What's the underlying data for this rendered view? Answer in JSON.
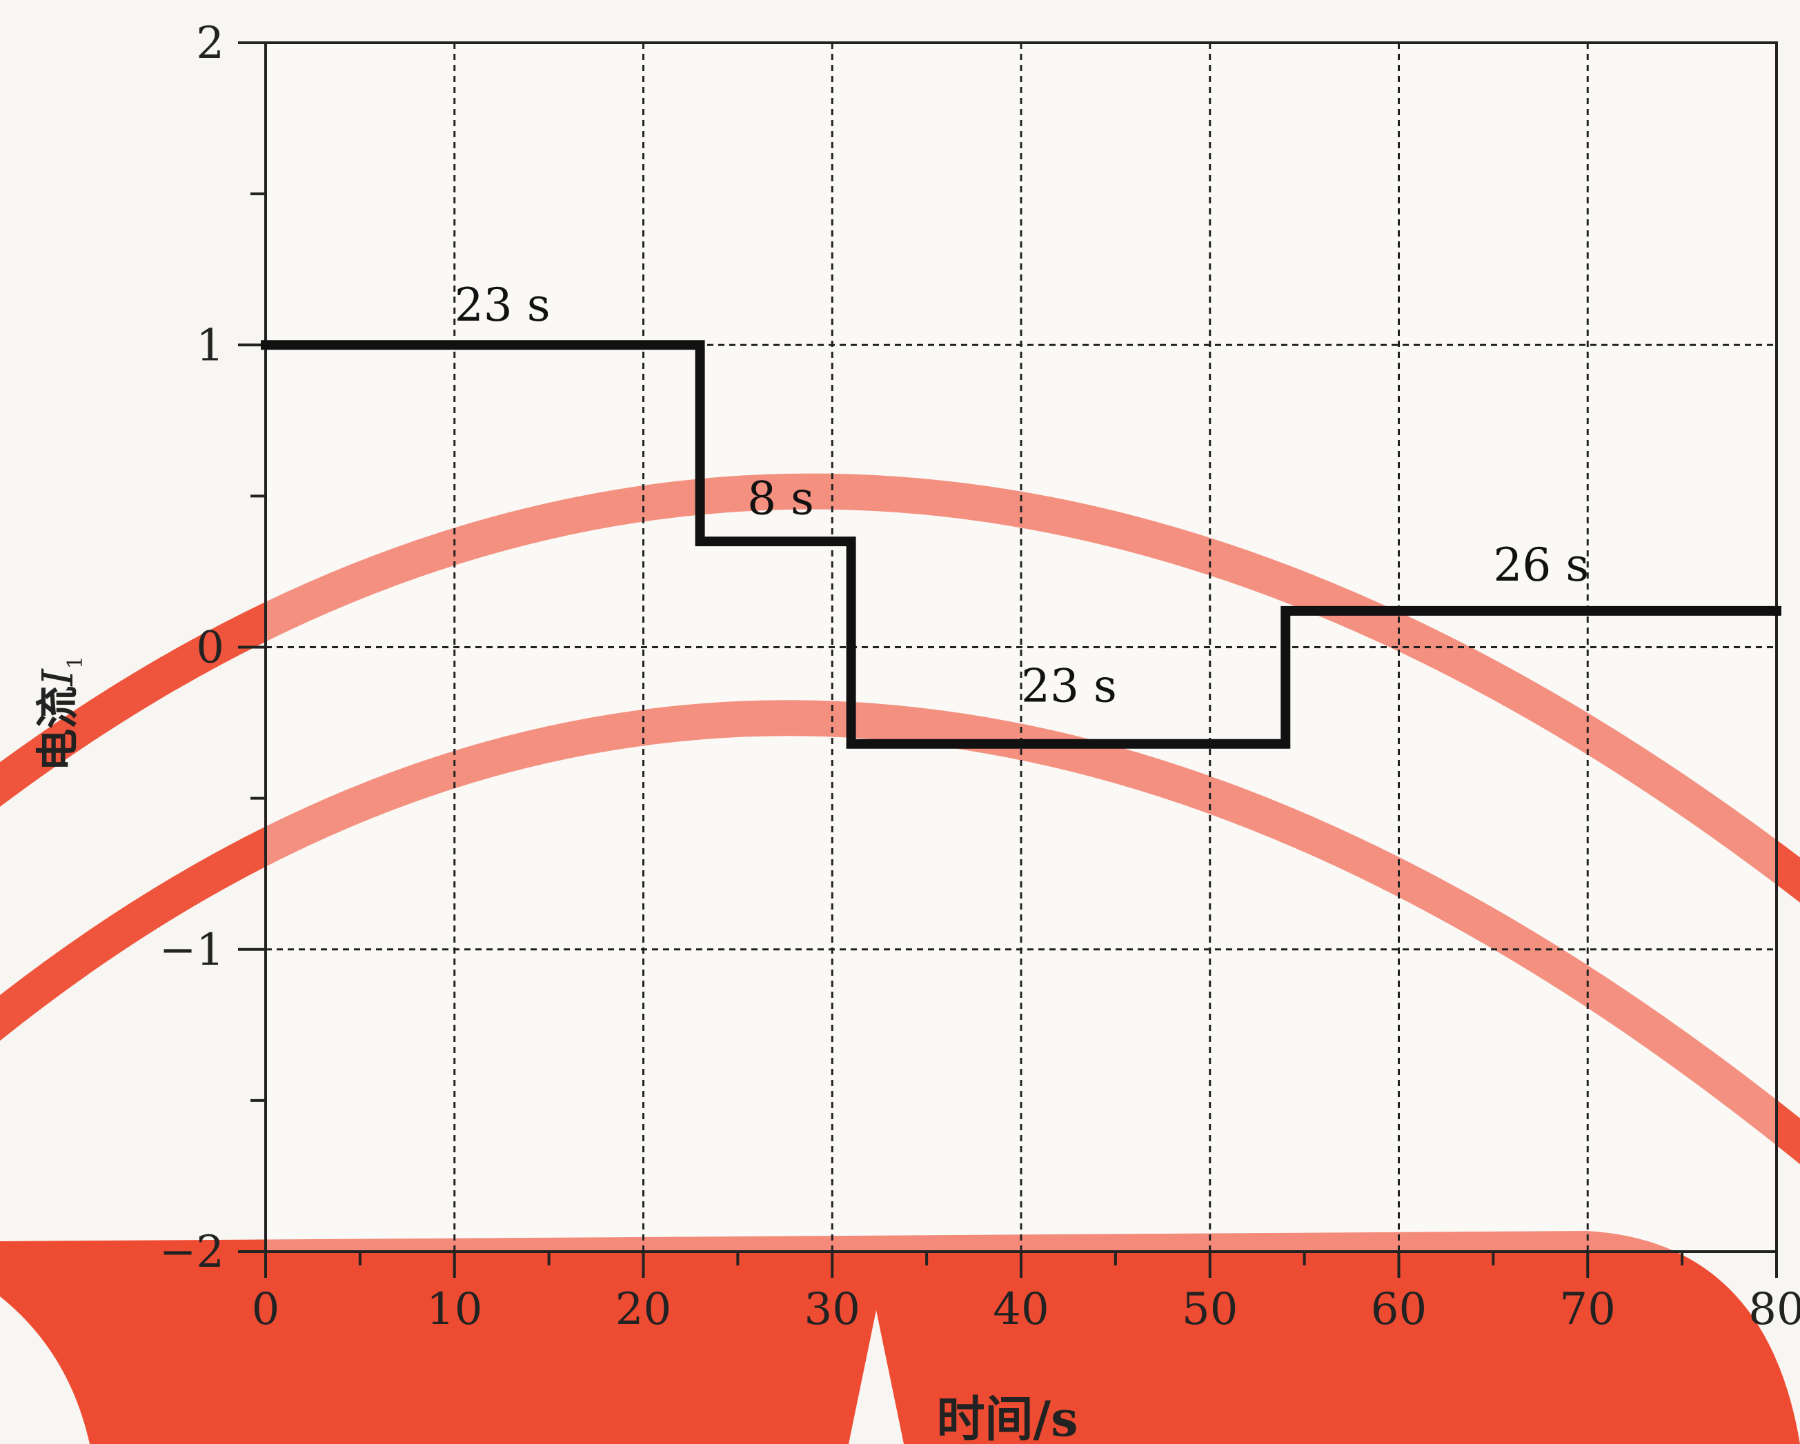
{
  "colors": {
    "paper": "#f7f6f2",
    "plot_bg": "#ffffff",
    "step_line": "#111111",
    "grid": "#222222",
    "decor_red": "#ee4c32",
    "decor_mark": "#ee4c32"
  },
  "chart_data": {
    "type": "line",
    "title": "",
    "xlabel": "时间/s",
    "ylabel_main": "电流",
    "ylabel_italic": "I",
    "ylabel_sub": "1",
    "xlim": [
      0,
      80
    ],
    "ylim": [
      -2,
      2
    ],
    "x_ticks": [
      {
        "value": 0,
        "label": "0"
      },
      {
        "value": 10,
        "label": "10"
      },
      {
        "value": 20,
        "label": "20"
      },
      {
        "value": 30,
        "label": "30"
      },
      {
        "value": 40,
        "label": "40"
      },
      {
        "value": 50,
        "label": "50"
      },
      {
        "value": 60,
        "label": "60"
      },
      {
        "value": 70,
        "label": "70"
      },
      {
        "value": 80,
        "label": "80"
      }
    ],
    "y_ticks": [
      {
        "value": 2,
        "label": "2"
      },
      {
        "value": 1,
        "label": "1"
      },
      {
        "value": 0,
        "label": "0"
      },
      {
        "value": -1,
        "label": "−1"
      },
      {
        "value": -2,
        "label": "−2"
      }
    ],
    "minor_x_step": 5,
    "minor_y_step": 0.5,
    "grid": true,
    "series": [
      {
        "x": [
          0,
          23,
          23,
          31,
          31,
          54,
          54,
          80
        ],
        "y": [
          1,
          1,
          0.35,
          0.35,
          -0.32,
          -0.32,
          0.12,
          0.12
        ]
      }
    ],
    "annotations": [
      {
        "text": "23 s",
        "x": 10,
        "y": 1.08
      },
      {
        "text": "8 s",
        "x": 25.5,
        "y": 0.44
      },
      {
        "text": "23 s",
        "x": 40,
        "y": -0.18
      },
      {
        "text": "26 s",
        "x": 65,
        "y": 0.22
      }
    ]
  }
}
